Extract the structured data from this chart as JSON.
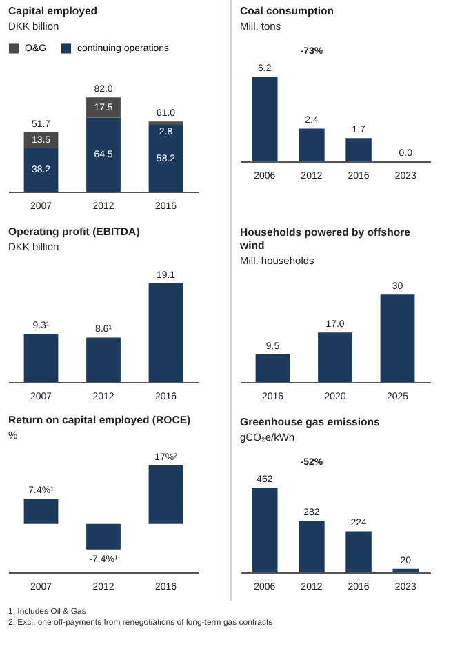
{
  "chart_data": [
    {
      "type": "bar",
      "title": "Capital employed",
      "subtitle": "DKK billion",
      "categories": [
        "2007",
        "2012",
        "2016"
      ],
      "stacked": true,
      "legend": "top",
      "tick_labels": "x",
      "series": [
        {
          "name": "continuing operations",
          "color": "#1b3a5e",
          "values": [
            38.2,
            64.5,
            58.2
          ],
          "value_labels": [
            "38.2",
            "64.5",
            "58.2"
          ]
        },
        {
          "name": "O&G",
          "color": "#4a4a48",
          "values": [
            13.5,
            17.5,
            2.8
          ],
          "value_labels": [
            "13.5",
            "17.5",
            "2.8"
          ]
        }
      ],
      "totals": [
        "51.7",
        "82.0",
        "61.0"
      ]
    },
    {
      "type": "bar",
      "title": "Coal consumption",
      "subtitle": "Mill. tons",
      "categories": [
        "2006",
        "2012",
        "2016",
        "2023"
      ],
      "tick_labels": "x",
      "color": "#1b3a5e",
      "values": [
        6.2,
        2.4,
        1.7,
        0.0
      ],
      "value_labels": [
        "6.2",
        "2.4",
        "1.7",
        "0.0"
      ],
      "annotations": [
        "-73%"
      ]
    },
    {
      "type": "bar",
      "title": "Operating profit (EBITDA)",
      "subtitle": "DKK billion",
      "categories": [
        "2007",
        "2012",
        "2016"
      ],
      "tick_labels": "x",
      "color": "#1b3a5e",
      "values": [
        9.3,
        8.6,
        19.1
      ],
      "value_labels": [
        "9.3¹",
        "8.6¹",
        "19.1"
      ]
    },
    {
      "type": "bar",
      "title": "Households powered by offshore wind",
      "subtitle": "Mill. households",
      "categories": [
        "2016",
        "2020",
        "2025"
      ],
      "tick_labels": "x",
      "color": "#1b3a5e",
      "values": [
        9.5,
        17.0,
        30
      ],
      "value_labels": [
        "9.5",
        "17.0",
        "30"
      ]
    },
    {
      "type": "bar",
      "title": "Return on capital employed (ROCE)",
      "subtitle": "%",
      "categories": [
        "2007",
        "2012",
        "2016"
      ],
      "tick_labels": "x",
      "color": "#1b3a5e",
      "values": [
        7.4,
        -7.4,
        17
      ],
      "value_labels": [
        "7.4%¹",
        "-7.4%¹",
        "17%²"
      ]
    },
    {
      "type": "bar",
      "title": "Greenhouse gas emissions",
      "subtitle": "gCO₂e/kWh",
      "categories": [
        "2006",
        "2012",
        "2016",
        "2023"
      ],
      "tick_labels": "x",
      "color": "#1b3a5e",
      "values": [
        462,
        282,
        224,
        20
      ],
      "data_labels": true,
      "annotations": [
        "-52%"
      ]
    },
    {
      "type": "other",
      "annotations": [
        "1.   Includes Oil & Gas",
        "2.   Excl. one off-payments from renegotiations of long-term gas contracts"
      ]
    }
  ]
}
